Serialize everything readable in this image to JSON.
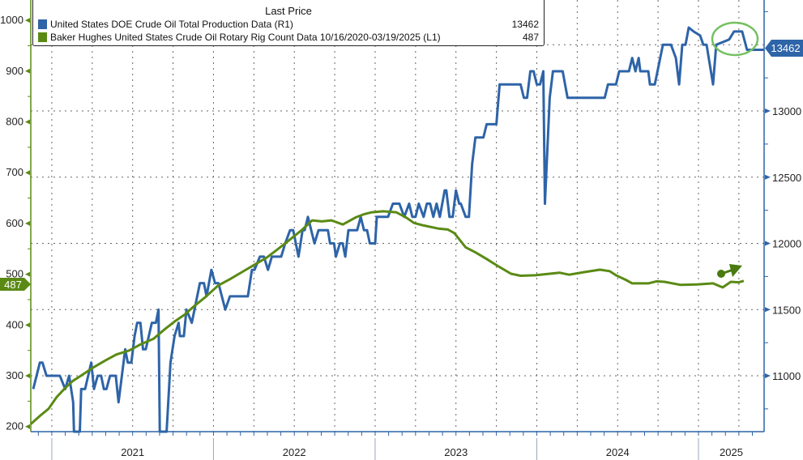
{
  "chart_data": {
    "type": "line",
    "title": "",
    "legend": {
      "title": "Last Price",
      "placement": "top-left",
      "entries": [
        {
          "label": "United States DOE Crude Oil Total Production Data  (R1)",
          "value": "13462",
          "color": "#2e64a8"
        },
        {
          "label": "Baker Hughes United States Crude Oil Rotary Rig Count Data 10/16/2020-03/19/2025   (L1)",
          "value": "487",
          "color": "#5a8a14"
        }
      ]
    },
    "xlim": [
      2020.87,
      2025.406
    ],
    "x_tick_labels": [
      {
        "label": "2021",
        "year": 2021
      },
      {
        "label": "2022",
        "year": 2022
      },
      {
        "label": "2023",
        "year": 2023
      },
      {
        "label": "2024",
        "year": 2024
      },
      {
        "label": "2025",
        "year": 2025
      }
    ],
    "left_axis": {
      "ylim": [
        190,
        1040
      ],
      "ticks": [
        "200",
        "300",
        "400",
        "500",
        "600",
        "700",
        "800",
        "900",
        "1000"
      ],
      "color": "#5a8a14"
    },
    "right_axis": {
      "ylim": [
        10578,
        13838
      ],
      "ticks": [
        "11000",
        "11500",
        "12000",
        "12500",
        "13000"
      ],
      "color": "#2e64a8"
    },
    "grid": true,
    "last_value_labels": {
      "right": "13462",
      "left": "487"
    },
    "series": [
      {
        "name": "United States DOE Crude Oil Total Production Data",
        "axis": "right",
        "color": "#2e64a8",
        "x": [
          2020.885,
          2020.926,
          2020.942,
          2020.967,
          2021.05,
          2021.083,
          2021.107,
          2021.132,
          2021.137,
          2021.173,
          2021.182,
          2021.206,
          2021.244,
          2021.261,
          2021.284,
          2021.305,
          2021.322,
          2021.338,
          2021.36,
          2021.396,
          2021.413,
          2021.454,
          2021.47,
          2021.492,
          2021.512,
          2021.528,
          2021.548,
          2021.564,
          2021.581,
          2021.619,
          2021.644,
          2021.66,
          2021.668,
          2021.71,
          2021.734,
          2021.759,
          2021.784,
          2021.792,
          2021.817,
          2021.833,
          2021.866,
          2021.916,
          2021.941,
          2021.957,
          2021.987,
          2022.01,
          2022.031,
          2022.073,
          2022.102,
          2022.213,
          2022.238,
          2022.254,
          2022.287,
          2022.312,
          2022.337,
          2022.361,
          2022.419,
          2022.444,
          2022.474,
          2022.493,
          2022.526,
          2022.551,
          2022.564,
          2022.584,
          2022.625,
          2022.65,
          2022.708,
          2022.721,
          2022.746,
          2022.757,
          2022.782,
          2022.799,
          2022.815,
          2022.835,
          2022.889,
          2022.911,
          2022.931,
          2022.95,
          2022.967,
          2023.0,
          2023.01,
          2023.08,
          2023.11,
          2023.15,
          2023.18,
          2023.21,
          2023.23,
          2023.25,
          2023.27,
          2023.3,
          2023.32,
          2023.34,
          2023.36,
          2023.38,
          2023.4,
          2023.43,
          2023.44,
          2023.46,
          2023.48,
          2023.5,
          2023.52,
          2023.53,
          2023.56,
          2023.58,
          2023.6,
          2023.62,
          2023.67,
          2023.69,
          2023.75,
          2023.77,
          2023.9,
          2023.92,
          2023.94,
          2023.96,
          2023.98,
          2024.0,
          2024.02,
          2024.04,
          2024.05,
          2024.08,
          2024.1,
          2024.16,
          2024.19,
          2024.42,
          2024.44,
          2024.49,
          2024.51,
          2024.57,
          2024.59,
          2024.61,
          2024.63,
          2024.64,
          2024.69,
          2024.7,
          2024.73,
          2024.78,
          2024.83,
          2024.86,
          2024.88,
          2024.9,
          2024.92,
          2024.94,
          2024.97,
          2025.01,
          2025.03,
          2025.05,
          2025.09,
          2025.11,
          2025.19,
          2025.22,
          2025.27,
          2025.3
        ],
        "y": [
          10900,
          11100,
          11100,
          11000,
          11000,
          10900,
          11000,
          10800,
          9700,
          9700,
          10900,
          10900,
          11100,
          10900,
          11000,
          11000,
          10900,
          10900,
          11000,
          11000,
          10800,
          11200,
          11100,
          11100,
          11300,
          11400,
          11400,
          11200,
          11200,
          11400,
          11400,
          11500,
          10000,
          10000,
          11100,
          11300,
          11400,
          11300,
          11300,
          11500,
          11400,
          11700,
          11700,
          11600,
          11800,
          11700,
          11700,
          11500,
          11600,
          11600,
          11800,
          11800,
          11900,
          11900,
          11800,
          11900,
          11900,
          12000,
          12100,
          12100,
          11900,
          12100,
          12100,
          12200,
          12000,
          12100,
          12100,
          12000,
          12000,
          11900,
          12000,
          12000,
          11900,
          12100,
          12100,
          12200,
          12100,
          12100,
          12000,
          12000,
          12200,
          12200,
          12300,
          12300,
          12200,
          12300,
          12200,
          12200,
          12300,
          12200,
          12300,
          12300,
          12200,
          12300,
          12200,
          12400,
          12400,
          12200,
          12200,
          12400,
          12300,
          12300,
          12200,
          12200,
          12600,
          12800,
          12800,
          12900,
          12900,
          13200,
          13200,
          13100,
          13100,
          13300,
          13300,
          13200,
          13200,
          13300,
          12300,
          13100,
          13300,
          13300,
          13100,
          13100,
          13200,
          13200,
          13300,
          13300,
          13400,
          13300,
          13400,
          13300,
          13300,
          13200,
          13200,
          13500,
          13500,
          13400,
          13200,
          13500,
          13500,
          13630,
          13600,
          13570,
          13500,
          13500,
          13200,
          13500,
          13540,
          13600,
          13600,
          13462
        ]
      },
      {
        "name": "Baker Hughes United States Crude Oil Rotary Rig Count",
        "axis": "left",
        "color": "#5a8a14",
        "x": [
          2020.87,
          2020.93,
          2020.98,
          2021.03,
          2021.08,
          2021.13,
          2021.18,
          2021.25,
          2021.33,
          2021.4,
          2021.48,
          2021.55,
          2021.63,
          2021.7,
          2021.76,
          2021.82,
          2021.88,
          2021.95,
          2022.03,
          2022.1,
          2022.18,
          2022.25,
          2022.33,
          2022.4,
          2022.48,
          2022.55,
          2022.61,
          2022.67,
          2022.73,
          2022.8,
          2022.88,
          2022.93,
          2022.98,
          2023.05,
          2023.13,
          2023.19,
          2023.24,
          2023.3,
          2023.39,
          2023.45,
          2023.49,
          2023.56,
          2023.62,
          2023.69,
          2023.76,
          2023.84,
          2023.9,
          2023.99,
          2024.05,
          2024.14,
          2024.2,
          2024.29,
          2024.39,
          2024.45,
          2024.49,
          2024.55,
          2024.59,
          2024.69,
          2024.74,
          2024.79,
          2024.89,
          2024.99,
          2025.09,
          2025.15,
          2025.2,
          2025.25,
          2025.28
        ],
        "y": [
          205,
          222,
          235,
          258,
          275,
          290,
          300,
          315,
          330,
          342,
          350,
          362,
          373,
          392,
          407,
          420,
          437,
          455,
          478,
          490,
          505,
          518,
          533,
          550,
          570,
          588,
          606,
          604,
          606,
          598,
          612,
          618,
          622,
          624,
          622,
          612,
          601,
          596,
          590,
          588,
          581,
          553,
          543,
          530,
          516,
          501,
          497,
          498,
          500,
          503,
          499,
          504,
          509,
          506,
          498,
          489,
          482,
          482,
          486,
          485,
          479,
          480,
          482,
          474,
          485,
          484,
          487
        ]
      }
    ],
    "annotations": [
      "green ellipse around latest production peak",
      "green arrow pointing up-right near rig count end"
    ]
  }
}
